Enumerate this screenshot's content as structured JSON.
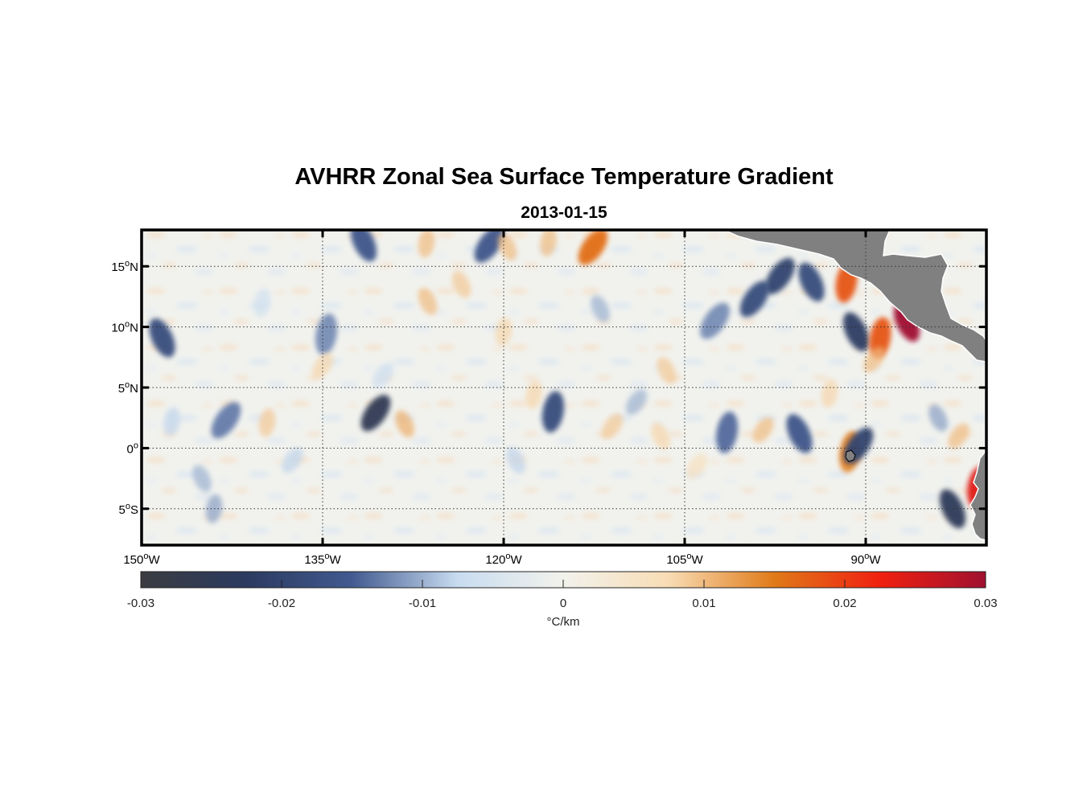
{
  "title": "AVHRR Zonal Sea Surface Temperature Gradient",
  "subtitle": "2013-01-15",
  "colorbar": {
    "unit": "°C/km",
    "ticks": [
      "-0.03",
      "-0.02",
      "-0.01",
      "0",
      "0.01",
      "0.02",
      "0.03"
    ],
    "range": [
      -0.03,
      0.03
    ],
    "colors": [
      "#3a3c40",
      "#2b3a60",
      "#425a90",
      "#c8dcf0",
      "#f2f2ec",
      "#f8dcb4",
      "#e07a18",
      "#f02010",
      "#a01030"
    ]
  },
  "map": {
    "lon_range": [
      -150,
      -80
    ],
    "lat_range": [
      -8,
      18
    ],
    "lon_ticks": [
      {
        "value": -150,
        "deg": "150",
        "hemi": "W"
      },
      {
        "value": -135,
        "deg": "135",
        "hemi": "W"
      },
      {
        "value": -120,
        "deg": "120",
        "hemi": "W"
      },
      {
        "value": -105,
        "deg": "105",
        "hemi": "W"
      },
      {
        "value": -90,
        "deg": "90",
        "hemi": "W"
      }
    ],
    "lat_ticks": [
      {
        "value": 15,
        "deg": "15",
        "hemi": "N"
      },
      {
        "value": 10,
        "deg": "10",
        "hemi": "N"
      },
      {
        "value": 5,
        "deg": "5",
        "hemi": "N"
      },
      {
        "value": 0,
        "deg": "0",
        "hemi": ""
      },
      {
        "value": -5,
        "deg": "5",
        "hemi": "S"
      }
    ],
    "grid": "dotted",
    "land_color": "#808080",
    "background_color": "#f1f2ee"
  },
  "features": [
    {
      "lon": -130.6,
      "lat": 2.9,
      "value": -0.025
    },
    {
      "lon": -128.2,
      "lat": 2.0,
      "value": 0.011
    },
    {
      "lon": -115.9,
      "lat": 3.0,
      "value": -0.018
    },
    {
      "lon": -111.0,
      "lat": 1.8,
      "value": 0.009
    },
    {
      "lon": -107.0,
      "lat": 1.0,
      "value": 0.008
    },
    {
      "lon": -101.5,
      "lat": 1.3,
      "value": -0.014
    },
    {
      "lon": -98.5,
      "lat": 1.5,
      "value": 0.01
    },
    {
      "lon": -95.5,
      "lat": 1.2,
      "value": -0.016
    },
    {
      "lon": -139.6,
      "lat": 2.1,
      "value": 0.009
    },
    {
      "lon": -143.0,
      "lat": 2.3,
      "value": -0.013
    },
    {
      "lon": -148.3,
      "lat": 9.1,
      "value": -0.018
    },
    {
      "lon": -134.7,
      "lat": 9.4,
      "value": -0.012
    },
    {
      "lon": -135.0,
      "lat": 6.8,
      "value": 0.008
    },
    {
      "lon": -131.6,
      "lat": 17.0,
      "value": -0.016
    },
    {
      "lon": -126.4,
      "lat": 16.9,
      "value": 0.01
    },
    {
      "lon": -121.2,
      "lat": 16.8,
      "value": -0.016
    },
    {
      "lon": -119.7,
      "lat": 16.6,
      "value": 0.01
    },
    {
      "lon": -116.3,
      "lat": 17.0,
      "value": 0.01
    },
    {
      "lon": -112.6,
      "lat": 16.6,
      "value": 0.016
    },
    {
      "lon": -126.3,
      "lat": 12.1,
      "value": 0.01
    },
    {
      "lon": -120.0,
      "lat": 9.6,
      "value": 0.008
    },
    {
      "lon": -97.1,
      "lat": 14.2,
      "value": -0.02
    },
    {
      "lon": -94.5,
      "lat": 13.7,
      "value": -0.018
    },
    {
      "lon": -91.6,
      "lat": 13.7,
      "value": 0.018
    },
    {
      "lon": -99.2,
      "lat": 12.3,
      "value": -0.018
    },
    {
      "lon": -90.8,
      "lat": 9.6,
      "value": -0.022
    },
    {
      "lon": -88.8,
      "lat": 9.1,
      "value": 0.018
    },
    {
      "lon": -89.3,
      "lat": 7.3,
      "value": 0.01
    },
    {
      "lon": -86.6,
      "lat": 10.4,
      "value": 0.03
    },
    {
      "lon": -91.3,
      "lat": -0.3,
      "value": 0.014
    },
    {
      "lon": -90.6,
      "lat": 0.2,
      "value": -0.02
    },
    {
      "lon": -82.8,
      "lat": -5.0,
      "value": -0.024
    },
    {
      "lon": -80.7,
      "lat": -3.2,
      "value": 0.024
    },
    {
      "lon": -82.3,
      "lat": 1.0,
      "value": 0.01
    },
    {
      "lon": -145.0,
      "lat": -2.5,
      "value": -0.01
    },
    {
      "lon": -144.0,
      "lat": -5.0,
      "value": -0.011
    },
    {
      "lon": -137.5,
      "lat": -1.0,
      "value": -0.008
    },
    {
      "lon": -106.5,
      "lat": 6.4,
      "value": 0.009
    },
    {
      "lon": -117.5,
      "lat": 4.4,
      "value": 0.008
    },
    {
      "lon": -109.0,
      "lat": 3.8,
      "value": -0.01
    },
    {
      "lon": -84.0,
      "lat": 2.5,
      "value": -0.011
    },
    {
      "lon": -93.0,
      "lat": 4.5,
      "value": 0.008
    },
    {
      "lon": -102.5,
      "lat": 10.5,
      "value": -0.012
    },
    {
      "lon": -112.0,
      "lat": 11.5,
      "value": -0.01
    },
    {
      "lon": -140.0,
      "lat": 12.0,
      "value": -0.006
    },
    {
      "lon": -130.0,
      "lat": 6.0,
      "value": -0.007
    },
    {
      "lon": -123.5,
      "lat": 13.5,
      "value": 0.009
    },
    {
      "lon": -147.5,
      "lat": 2.2,
      "value": -0.008
    },
    {
      "lon": -104.0,
      "lat": -1.5,
      "value": 0.006
    },
    {
      "lon": -119.0,
      "lat": -1.0,
      "value": -0.008
    }
  ]
}
